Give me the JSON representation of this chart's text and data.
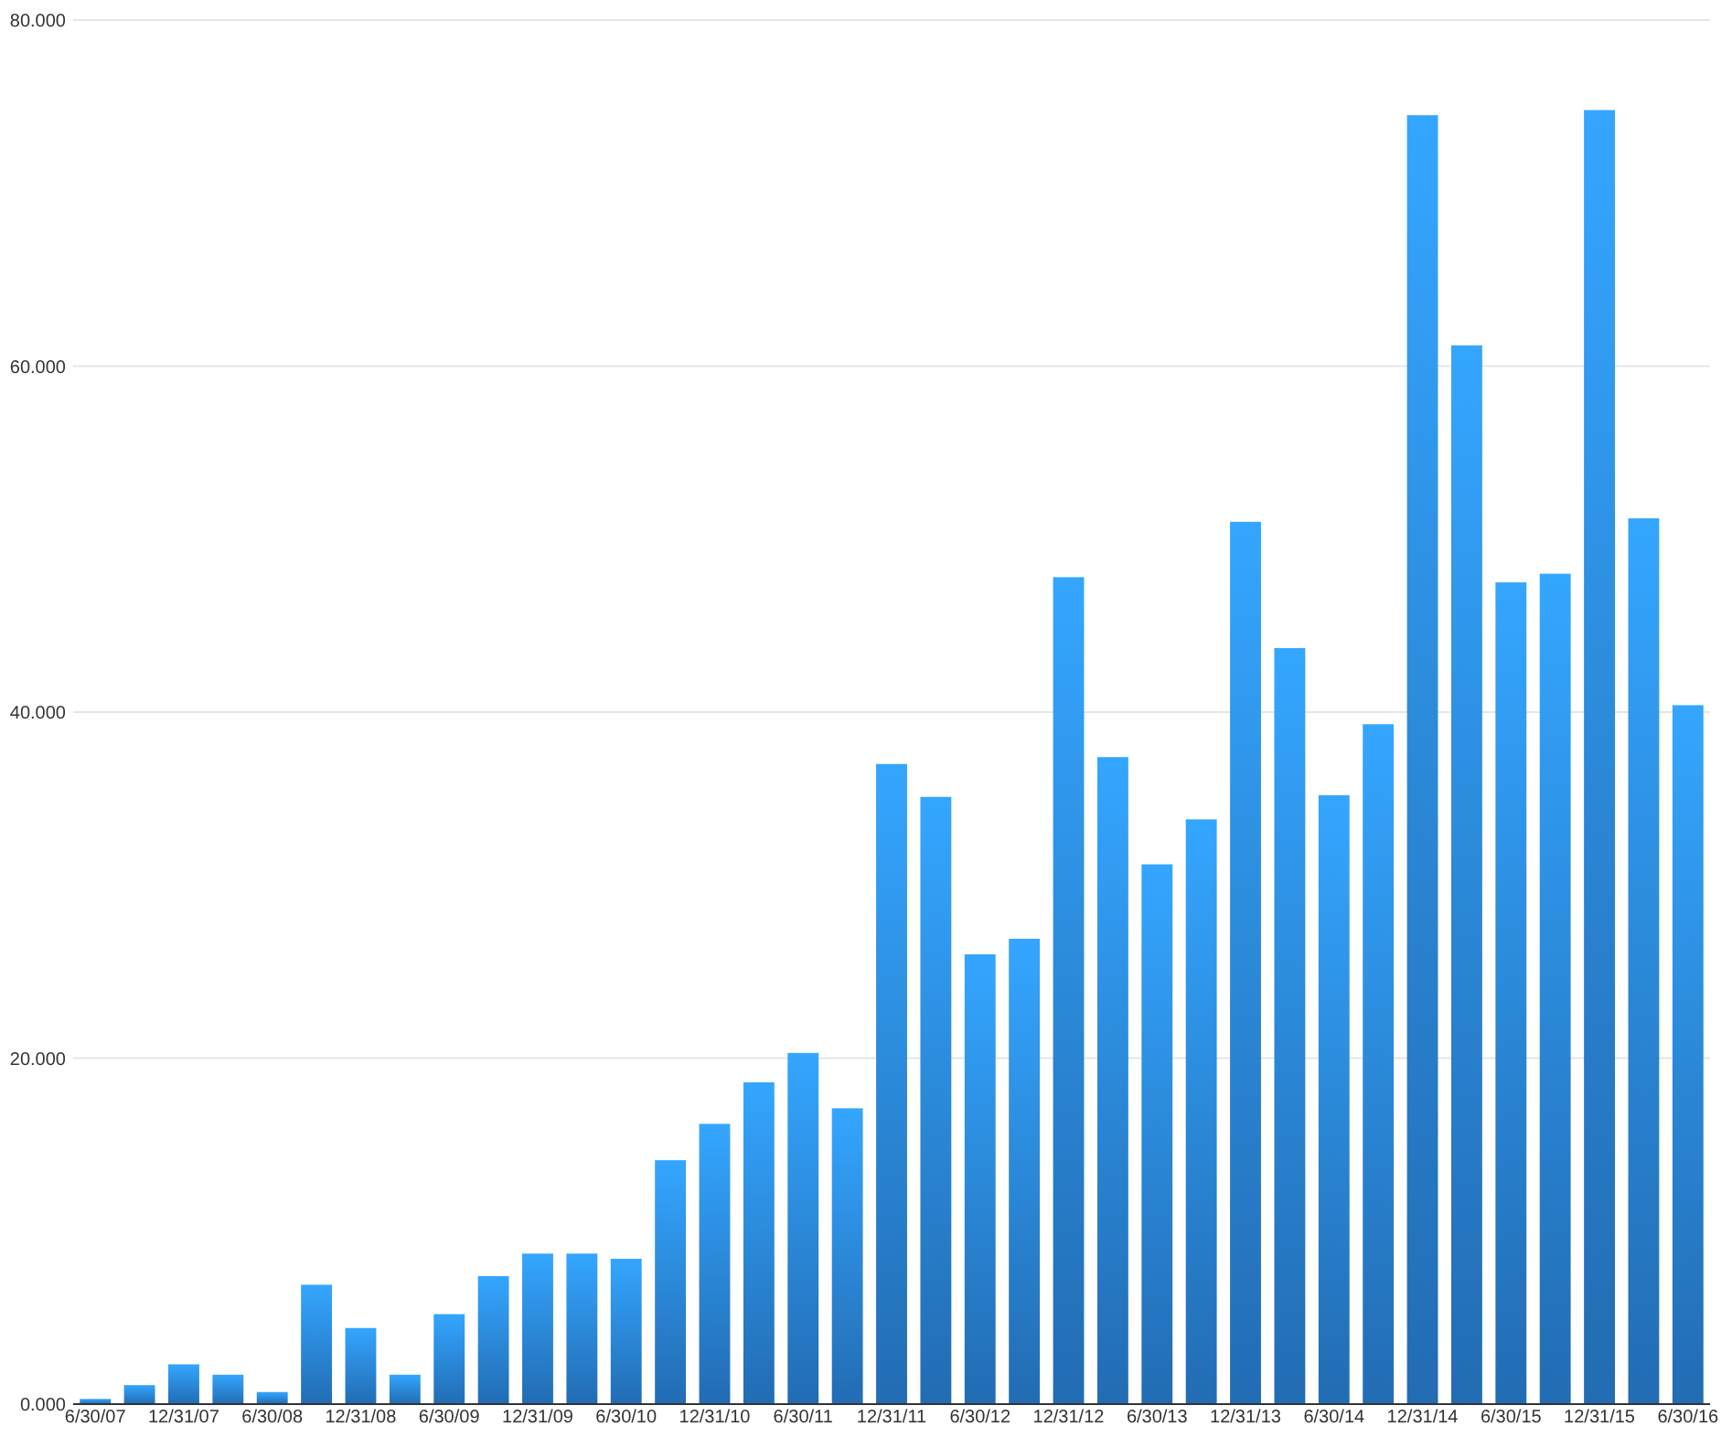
{
  "chart_data": {
    "type": "bar",
    "categories": [
      "6/30/07",
      null,
      "12/31/07",
      null,
      "6/30/08",
      null,
      "12/31/08",
      null,
      "6/30/09",
      null,
      "12/31/09",
      null,
      "6/30/10",
      null,
      "12/31/10",
      null,
      "6/30/11",
      null,
      "12/31/11",
      null,
      "6/30/12",
      null,
      "12/31/12",
      null,
      "6/30/13",
      null,
      "12/31/13",
      null,
      "6/30/14",
      null,
      "12/31/14",
      null,
      "6/30/15",
      null,
      "12/31/15",
      null,
      "6/30/16"
    ],
    "values": [
      0.3,
      1.1,
      2.3,
      1.7,
      0.7,
      6.9,
      4.4,
      1.7,
      5.2,
      7.4,
      8.7,
      8.7,
      8.4,
      14.1,
      16.2,
      18.6,
      20.3,
      17.1,
      37.0,
      35.1,
      26.0,
      26.9,
      47.8,
      37.4,
      31.2,
      33.8,
      51.0,
      43.7,
      35.2,
      39.3,
      74.5,
      61.2,
      47.5,
      48.0,
      74.8,
      51.2,
      40.4
    ],
    "color": "#2a86de",
    "ylim": [
      0,
      80
    ],
    "yticks": [
      {
        "value": 0,
        "label": "0.000"
      },
      {
        "value": 20,
        "label": "20.000"
      },
      {
        "value": 40,
        "label": "40.000"
      },
      {
        "value": 60,
        "label": "60.000"
      },
      {
        "value": 80,
        "label": "80.000"
      }
    ],
    "grid": "y"
  }
}
